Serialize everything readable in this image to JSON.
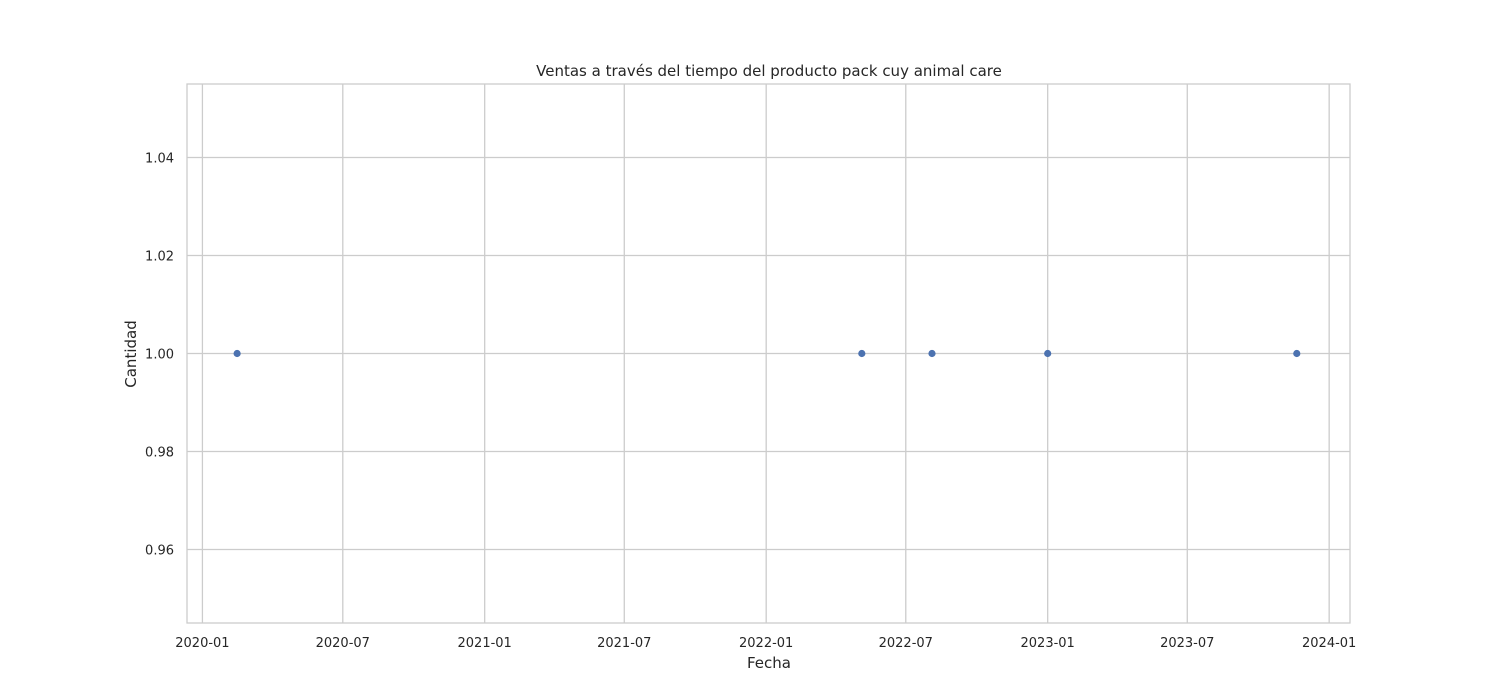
{
  "chart_data": {
    "type": "scatter",
    "title": "Ventas a través del tiempo del producto pack cuy  animal care",
    "xlabel": "Fecha",
    "ylabel": "Cantidad",
    "x_scale": "date",
    "xlim": [
      "2019-12-12",
      "2024-01-28"
    ],
    "ylim": [
      0.945,
      1.055
    ],
    "x_ticks": [
      "2020-01",
      "2020-07",
      "2021-01",
      "2021-07",
      "2022-01",
      "2022-07",
      "2023-01",
      "2023-07",
      "2024-01"
    ],
    "y_ticks": [
      0.96,
      0.98,
      1.0,
      1.02,
      1.04
    ],
    "y_tick_labels": [
      "0.96",
      "0.98",
      "1.00",
      "1.02",
      "1.04"
    ],
    "grid": true,
    "points": [
      {
        "x": "2020-02-15",
        "y": 1.0
      },
      {
        "x": "2022-05-05",
        "y": 1.0
      },
      {
        "x": "2022-08-04",
        "y": 1.0
      },
      {
        "x": "2023-01-01",
        "y": 1.0
      },
      {
        "x": "2023-11-20",
        "y": 1.0
      }
    ],
    "colors": {
      "point": "#4c72b0",
      "grid": "#cccccc",
      "spine": "#cccccc",
      "text": "#262626"
    }
  }
}
